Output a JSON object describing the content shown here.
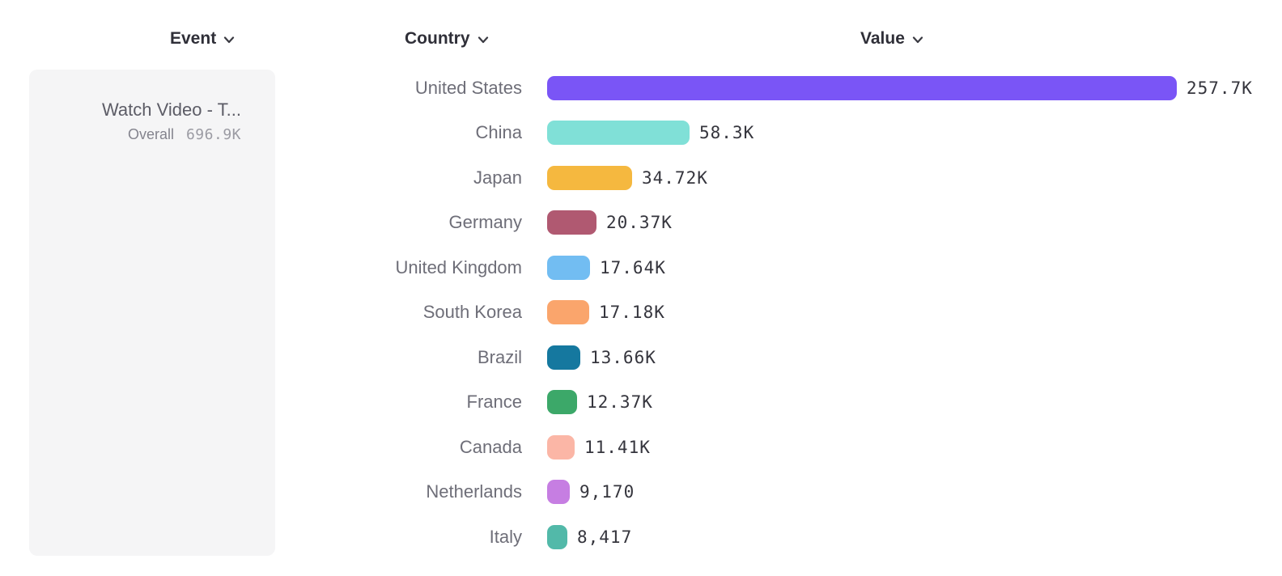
{
  "headers": {
    "event": "Event",
    "country": "Country",
    "value": "Value"
  },
  "event_card": {
    "title": "Watch Video - T...",
    "overall_label": "Overall",
    "overall_value": "696.9K"
  },
  "icons": {
    "header_dropdown": "chevron-down"
  },
  "colors": {
    "card_bg": "#F5F5F6",
    "header_text": "#2F2F38",
    "country_label": "#6E6E78",
    "value_label": "#35353D",
    "event_title": "#5C5C66",
    "overall_label": "#84848E",
    "overall_value": "#9B9BA3"
  },
  "chart_data": {
    "type": "bar",
    "orientation": "horizontal",
    "title": "",
    "xlabel": "",
    "ylabel": "",
    "categories": [
      "United States",
      "China",
      "Japan",
      "Germany",
      "United Kingdom",
      "South Korea",
      "Brazil",
      "France",
      "Canada",
      "Netherlands",
      "Italy"
    ],
    "values": [
      257700,
      58300,
      34720,
      20370,
      17640,
      17180,
      13660,
      12370,
      11410,
      9170,
      8417
    ],
    "value_labels": [
      "257.7K",
      "58.3K",
      "34.72K",
      "20.37K",
      "17.64K",
      "17.18K",
      "13.66K",
      "12.37K",
      "11.41K",
      "9,170",
      "8,417"
    ],
    "bar_colors": [
      "#7A55F6",
      "#80E0D7",
      "#F5B83F",
      "#B05971",
      "#72BDF2",
      "#FAA56C",
      "#15789F",
      "#3CA869",
      "#FBB6A6",
      "#C67EE2",
      "#52B9A9"
    ],
    "xlim": [
      0,
      257700
    ],
    "grid": false,
    "legend": false
  }
}
